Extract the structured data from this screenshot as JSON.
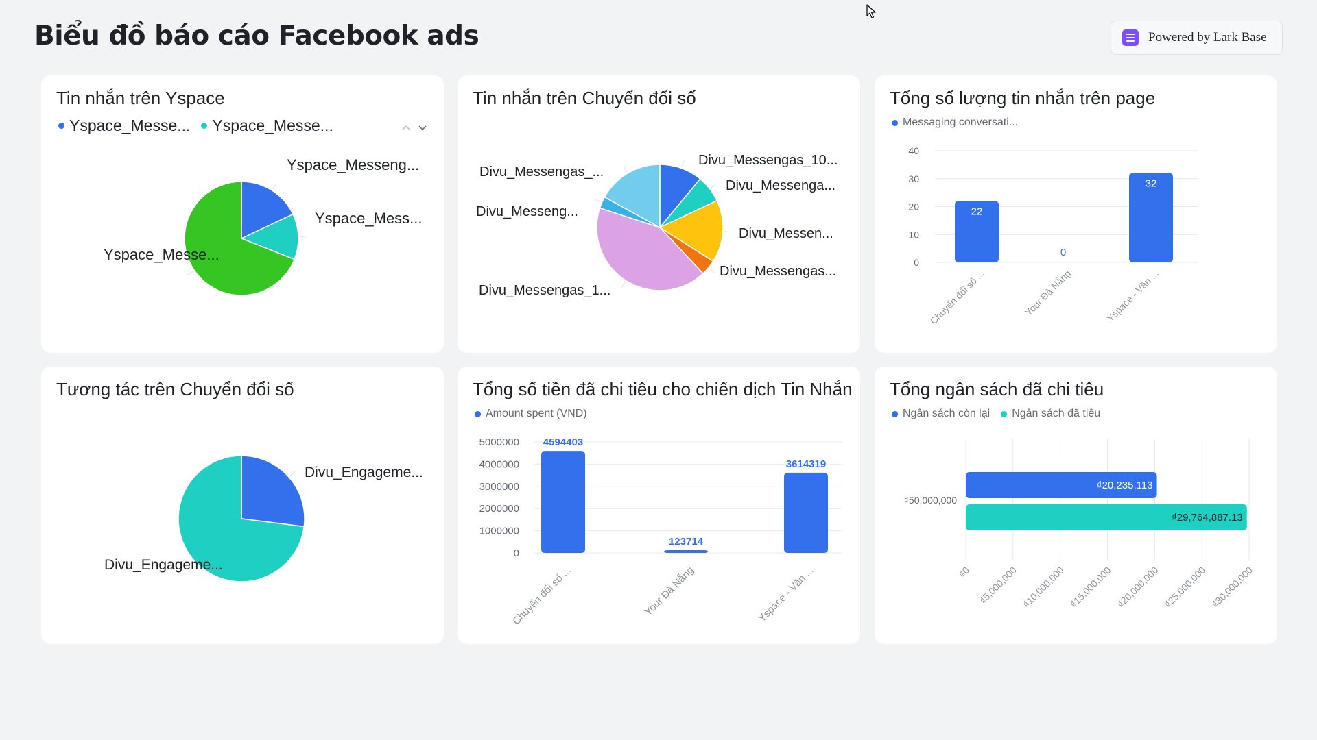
{
  "page": {
    "title": "Biểu đồ báo cáo Facebook ads",
    "powered_by": "Powered by Lark Base"
  },
  "colors": {
    "blue": "#3370eb",
    "teal": "#1fcfc2",
    "green": "#35c624",
    "light_blue": "#72cdec",
    "sky": "#3ab1e6",
    "lavender": "#dba2e5",
    "orange": "#f07512",
    "yellow": "#fdc30d"
  },
  "cards": {
    "c1": {
      "title": "Tin nhắn trên Yspace",
      "legend": [
        "Yspace_Messe...",
        "Yspace_Messe..."
      ]
    },
    "c2": {
      "title": "Tin nhắn trên Chuyển đổi số"
    },
    "c3": {
      "title": "Tổng số lượng tin nhắn trên page",
      "legend": [
        "Messaging conversati..."
      ]
    },
    "c4": {
      "title": "Tương tác trên Chuyển đổi số"
    },
    "c5": {
      "title": "Tổng số tiền đã chi tiêu cho chiến dịch Tin Nhắn",
      "legend": [
        "Amount spent (VND)"
      ]
    },
    "c6": {
      "title": "Tổng ngân sách đã chi tiêu",
      "legend": [
        "Ngân sách còn lại",
        "Ngân sách đã tiêu"
      ]
    }
  },
  "chart_data": [
    {
      "id": "c1",
      "type": "pie",
      "slices": [
        {
          "label": "Yspace_Messeng...",
          "value": 18,
          "color": "#3370eb",
          "side": "right"
        },
        {
          "label": "Yspace_Mess...",
          "value": 13,
          "color": "#1fcfc2",
          "side": "right"
        },
        {
          "label": "Yspace_Messe...",
          "value": 69,
          "color": "#35c624",
          "side": "left"
        }
      ]
    },
    {
      "id": "c2",
      "type": "pie",
      "slices": [
        {
          "label": "Divu_Messengas_10...",
          "value": 11,
          "color": "#3370eb",
          "side": "right"
        },
        {
          "label": "Divu_Messenga...",
          "value": 7,
          "color": "#1fcfc2",
          "side": "right"
        },
        {
          "label": "Divu_Messen...",
          "value": 16,
          "color": "#fdc30d",
          "side": "right"
        },
        {
          "label": "Divu_Messengas...",
          "value": 4,
          "color": "#f07512",
          "side": "right"
        },
        {
          "label": "Divu_Messengas_1...",
          "value": 42,
          "color": "#dba2e5",
          "side": "left"
        },
        {
          "label": "Divu_Messeng...",
          "value": 3,
          "color": "#3ab1e6",
          "side": "left"
        },
        {
          "label": "Divu_Messengas_...",
          "value": 17,
          "color": "#72cdec",
          "side": "left"
        }
      ]
    },
    {
      "id": "c3",
      "type": "bar",
      "categories": [
        "Chuyển đổi số ...",
        "Your Đà Nẵng",
        "Yspace - Văn ..."
      ],
      "series": [
        {
          "name": "Messaging conversati...",
          "values": [
            22,
            0,
            32
          ]
        }
      ],
      "yticks": [
        "0",
        "10",
        "20",
        "30",
        "40"
      ],
      "ylim": [
        0,
        40
      ]
    },
    {
      "id": "c4",
      "type": "pie",
      "slices": [
        {
          "label": "Divu_Engageme...",
          "value": 27,
          "color": "#3370eb",
          "side": "right"
        },
        {
          "label": "Divu_Engageme...",
          "value": 73,
          "color": "#1fcfc2",
          "side": "left"
        }
      ]
    },
    {
      "id": "c5",
      "type": "bar",
      "categories": [
        "Chuyển đổi số ...",
        "Your Đà Nẵng",
        "Yspace - Văn ..."
      ],
      "series": [
        {
          "name": "Amount spent (VND)",
          "values": [
            4594403,
            123714,
            3614319
          ]
        }
      ],
      "yticks": [
        "0",
        "1000000",
        "2000000",
        "3000000",
        "4000000",
        "5000000"
      ],
      "ylim": [
        0,
        5000000
      ]
    },
    {
      "id": "c6",
      "type": "bar",
      "orientation": "horizontal",
      "categories": [
        "₫50,000,000"
      ],
      "series": [
        {
          "name": "Ngân sách còn lại",
          "values": [
            20235113
          ],
          "label": "₫20,235,113"
        },
        {
          "name": "Ngân sách đã tiêu",
          "values": [
            29764887.13
          ],
          "label": "₫29,764,887.13"
        }
      ],
      "xticks": [
        "₫0",
        "₫5,000,000",
        "₫10,000,000",
        "₫15,000,000",
        "₫20,000,000",
        "₫25,000,000",
        "₫30,000,000"
      ],
      "xlim": [
        0,
        30000000
      ]
    }
  ]
}
